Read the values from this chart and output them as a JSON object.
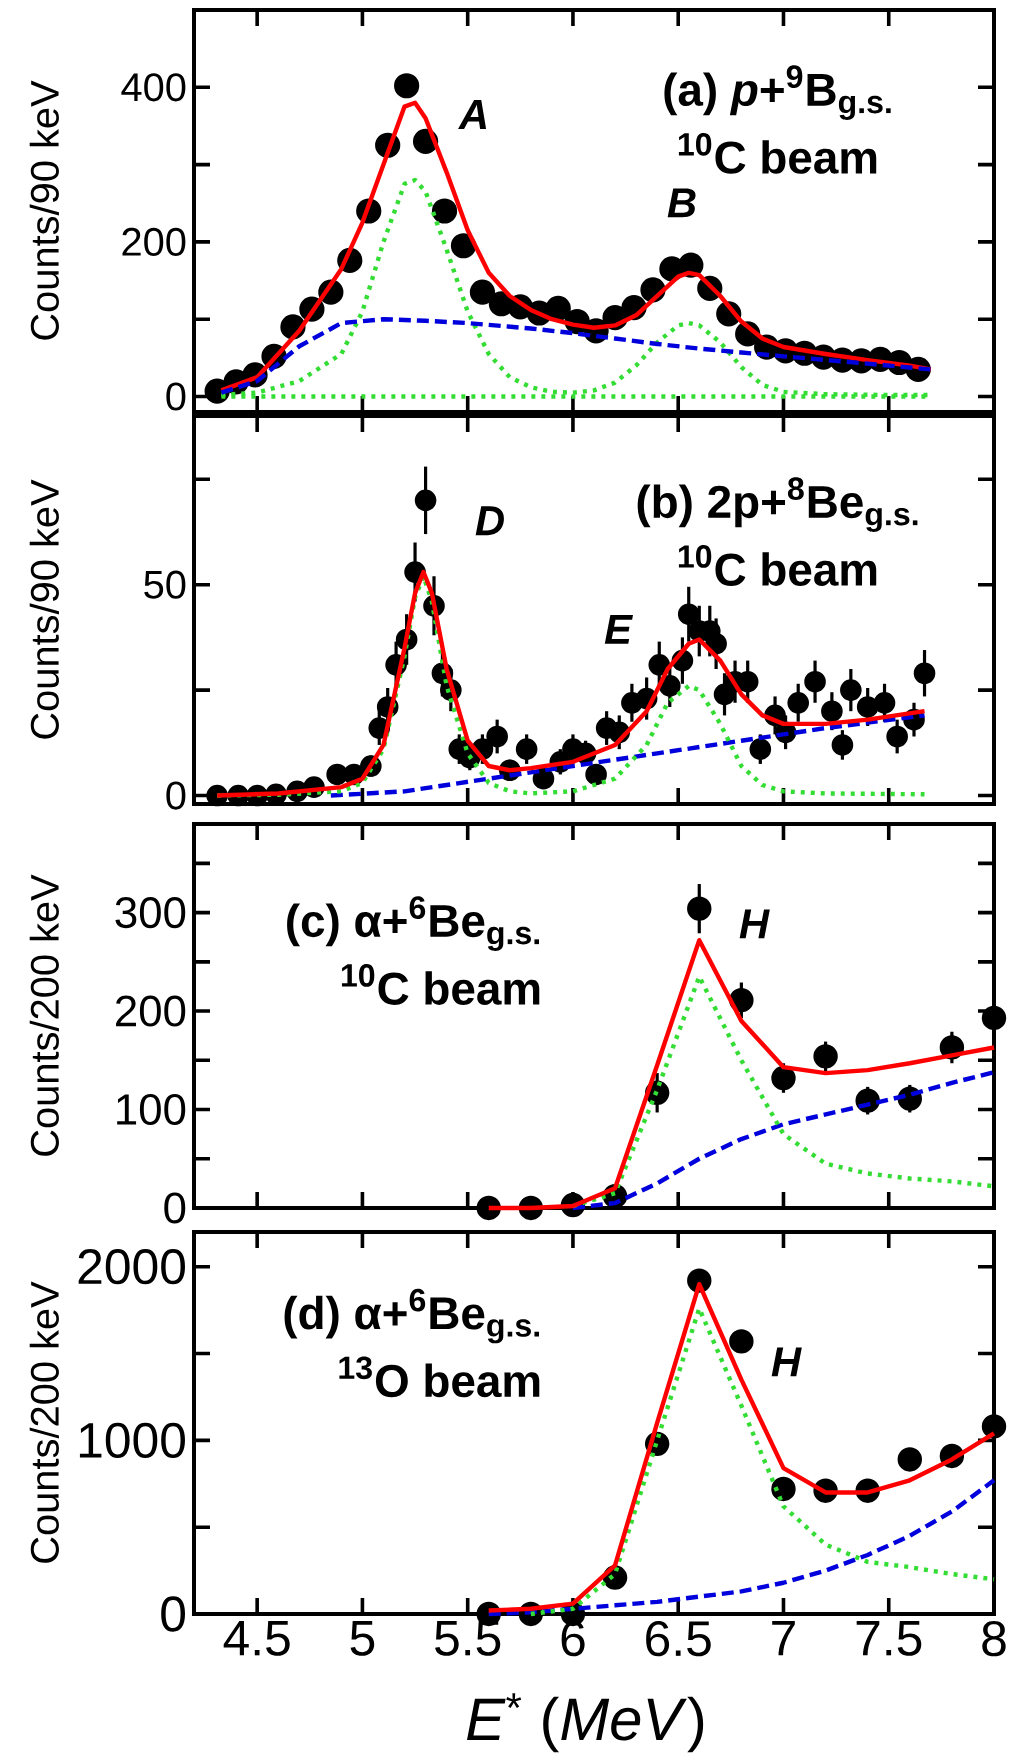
{
  "chart_data": [
    {
      "type": "scatter",
      "ylabel": "Counts/90 keV",
      "xlim": [
        4.2,
        8
      ],
      "xticks": [
        4.5,
        5,
        5.5,
        6,
        6.5,
        7,
        7.5,
        8
      ],
      "ylim": [
        -20,
        500
      ],
      "yticks": [
        0,
        {
          "value": 100,
          "label": null
        },
        200,
        {
          "value": 300,
          "label": null
        },
        400
      ],
      "tick_labels": "y",
      "annotations": [
        "(a) *p*+$^{9}$B$_{g.s.}$",
        "$^{10}$C beam",
        "A",
        "B"
      ],
      "series": [
        {
          "color": "#000000",
          "marker": "circle",
          "x": [
            4.31,
            4.4,
            4.49,
            4.58,
            4.67,
            4.76,
            4.85,
            4.94,
            5.03,
            5.12,
            5.21,
            5.3,
            5.39,
            5.48,
            5.57,
            5.66,
            5.75,
            5.84,
            5.93,
            6.02,
            6.11,
            6.2,
            6.29,
            6.38,
            6.47,
            6.56,
            6.65,
            6.74,
            6.83,
            6.92,
            7.01,
            7.1,
            7.19,
            7.28,
            7.37,
            7.46,
            7.55,
            7.64
          ],
          "values": [
            7,
            19,
            28,
            52,
            90,
            113,
            135,
            176,
            240,
            325,
            402,
            330,
            240,
            195,
            135,
            120,
            116,
            108,
            114,
            97,
            85,
            102,
            115,
            138,
            165,
            170,
            140,
            107,
            81,
            64,
            59,
            56,
            51,
            47,
            46,
            48,
            44,
            35
          ]
        },
        {
          "type": "line",
          "color": "#33dd33",
          "line_style": "dotted",
          "marker": "none",
          "x": [
            4.33,
            7.7
          ],
          "values": [
            0,
            0
          ]
        },
        {
          "type": "line",
          "color": "#33dd33",
          "line_style": "dotted",
          "marker": "none",
          "x": [
            4.33,
            4.5,
            4.7,
            4.9,
            5.0,
            5.1,
            5.2,
            5.25,
            5.3,
            5.4,
            5.5,
            5.6,
            5.7,
            5.8,
            5.9,
            6.0,
            6.1,
            6.2,
            6.3,
            6.4,
            6.5,
            6.55,
            6.6,
            6.7,
            6.8,
            6.9,
            7.0,
            7.2,
            7.5,
            7.7
          ],
          "values": [
            2,
            5,
            20,
            55,
            110,
            200,
            275,
            280,
            265,
            190,
            110,
            55,
            25,
            12,
            6,
            5,
            8,
            18,
            40,
            70,
            92,
            95,
            92,
            70,
            38,
            15,
            6,
            3,
            2,
            2
          ]
        },
        {
          "type": "line",
          "color": "#ff0000",
          "line_style": "solid",
          "marker": "none",
          "x": [
            4.33,
            4.5,
            4.7,
            4.9,
            5.0,
            5.1,
            5.2,
            5.25,
            5.3,
            5.4,
            5.5,
            5.6,
            5.7,
            5.8,
            5.9,
            6.0,
            6.1,
            6.2,
            6.3,
            6.4,
            6.5,
            6.55,
            6.6,
            6.7,
            6.8,
            6.9,
            7.0,
            7.2,
            7.4,
            7.6,
            7.7
          ],
          "values": [
            8,
            25,
            85,
            165,
            225,
            300,
            375,
            380,
            360,
            290,
            215,
            160,
            130,
            112,
            100,
            93,
            89,
            92,
            105,
            130,
            155,
            160,
            157,
            130,
            97,
            75,
            64,
            55,
            47,
            40,
            35
          ]
        },
        {
          "type": "line",
          "color": "#0000dd",
          "line_style": "dashed",
          "marker": "none",
          "x": [
            4.33,
            4.5,
            4.7,
            4.9,
            5.1,
            5.3,
            5.5,
            5.8,
            6.0,
            6.2,
            6.4,
            6.6,
            6.8,
            7.0,
            7.3,
            7.7
          ],
          "values": [
            5,
            20,
            65,
            95,
            100,
            98,
            95,
            88,
            82,
            75,
            68,
            62,
            57,
            52,
            45,
            35
          ]
        }
      ]
    },
    {
      "type": "scatter",
      "ylabel": "Counts/90 keV",
      "xlim": [
        4.2,
        8
      ],
      "xticks": [
        4.5,
        5,
        5.5,
        6,
        6.5,
        7,
        7.5,
        8
      ],
      "ylim": [
        -2,
        90
      ],
      "yticks": [
        0,
        {
          "value": 25,
          "label": null
        },
        50,
        {
          "value": 75,
          "label": null
        }
      ],
      "tick_labels": "y",
      "annotations": [
        "(b) 2p+$^{8}$Be$_{g.s.}$",
        "$^{10}$C beam",
        "D",
        "E"
      ],
      "series": [
        {
          "color": "#000000",
          "marker": "circle",
          "x": [
            4.31,
            4.41,
            4.5,
            4.59,
            4.69,
            4.77,
            4.88,
            4.96,
            5.04,
            5.08,
            5.12,
            5.16,
            5.21,
            5.25,
            5.3,
            5.34,
            5.38,
            5.42,
            5.46,
            5.51,
            5.57,
            5.64,
            5.7,
            5.78,
            5.86,
            5.94,
            6.0,
            6.06,
            6.11,
            6.16,
            6.22,
            6.28,
            6.35,
            6.41,
            6.46,
            6.52,
            6.55,
            6.6,
            6.65,
            6.68,
            6.72,
            6.77,
            6.83,
            6.89,
            6.96,
            7.01,
            7.07,
            7.15,
            7.23,
            7.28,
            7.32,
            7.4,
            7.48,
            7.54,
            7.62,
            7.67
          ],
          "values": [
            0,
            0,
            0,
            0.3,
            1,
            2,
            5,
            5,
            7,
            16,
            21,
            31,
            37,
            53,
            70,
            45,
            29,
            25,
            11,
            9,
            11,
            14,
            6,
            11,
            4,
            8,
            11,
            10,
            5,
            16,
            15,
            22,
            23,
            31,
            26,
            32,
            43,
            39,
            39,
            36,
            24,
            27,
            27,
            11,
            19,
            15,
            22,
            27,
            20,
            12,
            25,
            21,
            22,
            14,
            18,
            29
          ],
          "errors": [
            null,
            null,
            null,
            null,
            null,
            null,
            2,
            2,
            2.5,
            4,
            4.5,
            5.5,
            6,
            7,
            8,
            7,
            5.5,
            5,
            3.5,
            3,
            3.5,
            4,
            2.5,
            3.5,
            2,
            3,
            3.5,
            3,
            2,
            4,
            4,
            4.5,
            5,
            5.5,
            5,
            5.5,
            6.5,
            6,
            6,
            6,
            5,
            5,
            5,
            3.5,
            4.5,
            4,
            4.5,
            5,
            4.5,
            3.5,
            5,
            4.5,
            4.5,
            4,
            4,
            5.5
          ]
        },
        {
          "type": "line",
          "color": "#0000dd",
          "line_style": "dashed",
          "marker": "none",
          "x": [
            4.85,
            5.2,
            5.6,
            6.0,
            6.4,
            6.8,
            7.2,
            7.67
          ],
          "values": [
            0,
            1,
            4,
            7,
            10,
            13,
            16,
            19
          ]
        },
        {
          "type": "line",
          "color": "#33dd33",
          "line_style": "dotted",
          "marker": "none",
          "x": [
            4.31,
            4.6,
            4.9,
            5.0,
            5.1,
            5.2,
            5.25,
            5.29,
            5.33,
            5.4,
            5.5,
            5.6,
            5.7,
            5.8,
            6.0,
            6.2,
            6.35,
            6.45,
            6.55,
            6.6,
            6.7,
            6.8,
            6.9,
            7.0,
            7.2,
            7.67
          ],
          "values": [
            0,
            0.2,
            1,
            3,
            11,
            33,
            47,
            52,
            46,
            26,
            10,
            3,
            1,
            0.5,
            1,
            4,
            12,
            22,
            26,
            25,
            17,
            7,
            2.5,
            1,
            0.5,
            0.3
          ]
        },
        {
          "type": "line",
          "color": "#ff0000",
          "line_style": "solid",
          "marker": "none",
          "x": [
            4.31,
            4.6,
            4.9,
            5.0,
            5.1,
            5.2,
            5.25,
            5.29,
            5.33,
            5.4,
            5.5,
            5.6,
            5.7,
            5.8,
            6.0,
            6.2,
            6.35,
            6.45,
            6.55,
            6.6,
            6.7,
            6.8,
            6.9,
            7.0,
            7.2,
            7.4,
            7.67
          ],
          "values": [
            0,
            0.5,
            2,
            4,
            12,
            35,
            48,
            53,
            48,
            30,
            13,
            7,
            6,
            6.5,
            8,
            12,
            20,
            30,
            36,
            37,
            32,
            24,
            19,
            17,
            17,
            18,
            20
          ]
        }
      ]
    },
    {
      "type": "scatter",
      "ylabel": "Counts/200 keV",
      "xlim": [
        4.2,
        8
      ],
      "xticks": [
        4.5,
        5,
        5.5,
        6,
        6.5,
        7,
        7.5,
        8
      ],
      "ylim": [
        0,
        390
      ],
      "yticks": [
        0,
        {
          "value": 50,
          "label": null
        },
        100,
        {
          "value": 150,
          "label": null
        },
        200,
        {
          "value": 250,
          "label": null
        },
        300,
        {
          "value": 350,
          "label": null
        }
      ],
      "tick_labels": "y",
      "annotations": [
        "(c) α+$^{6}$Be$_{g.s.}$",
        "$^{10}$C beam",
        "H"
      ],
      "series": [
        {
          "color": "#000000",
          "marker": "circle",
          "x": [
            5.6,
            5.8,
            6.0,
            6.2,
            6.4,
            6.6,
            6.8,
            7.0,
            7.2,
            7.4,
            7.6,
            7.8,
            8.0
          ],
          "values": [
            0,
            0,
            3,
            12,
            117,
            304,
            211,
            132,
            154,
            109,
            111,
            163,
            193
          ],
          "errors": [
            null,
            null,
            null,
            5,
            20,
            25,
            18,
            15,
            15,
            14,
            14,
            16,
            17
          ]
        },
        {
          "type": "line",
          "color": "#0000dd",
          "line_style": "dashed",
          "marker": "none",
          "x": [
            6.0,
            6.2,
            6.4,
            6.6,
            6.8,
            7.0,
            7.2,
            7.4,
            7.6,
            7.8,
            8.0
          ],
          "values": [
            0,
            5,
            25,
            50,
            70,
            85,
            95,
            105,
            115,
            127,
            138
          ]
        },
        {
          "type": "line",
          "color": "#33dd33",
          "line_style": "dotted",
          "marker": "none",
          "x": [
            6.0,
            6.2,
            6.4,
            6.6,
            6.8,
            7.0,
            7.2,
            7.4,
            7.6,
            7.8,
            8.0
          ],
          "values": [
            2,
            15,
            120,
            235,
            150,
            75,
            45,
            35,
            30,
            27,
            22
          ]
        },
        {
          "type": "line",
          "color": "#ff0000",
          "line_style": "solid",
          "marker": "none",
          "x": [
            5.6,
            5.8,
            6.0,
            6.2,
            6.4,
            6.6,
            6.8,
            7.0,
            7.2,
            7.4,
            7.6,
            7.8,
            8.0
          ],
          "values": [
            0,
            0,
            2,
            20,
            145,
            272,
            190,
            143,
            137,
            140,
            147,
            155,
            163
          ]
        }
      ]
    },
    {
      "type": "scatter",
      "ylabel": "Counts/200 keV",
      "xlabel": "*E*$^{*}$ (*MeV*)",
      "xlim": [
        4.2,
        8
      ],
      "xticks": [
        4.5,
        5,
        5.5,
        6,
        6.5,
        7,
        7.5,
        8
      ],
      "ylim": [
        0,
        2200
      ],
      "yticks": [
        0,
        {
          "value": 500,
          "label": null
        },
        1000,
        {
          "value": 1500,
          "label": null
        },
        2000
      ],
      "annotations": [
        "(d) α+$^{6}$Be$_{g.s.}$",
        "$^{13}$O beam",
        "H"
      ],
      "series": [
        {
          "color": "#000000",
          "marker": "circle",
          "x": [
            5.6,
            5.8,
            6.0,
            6.2,
            6.4,
            6.6,
            6.8,
            7.0,
            7.2,
            7.4,
            7.6,
            7.8,
            8.0
          ],
          "values": [
            0,
            0,
            0,
            210,
            980,
            1920,
            1570,
            720,
            710,
            710,
            890,
            910,
            1080
          ]
        },
        {
          "type": "line",
          "color": "#0000dd",
          "line_style": "dashed",
          "marker": "none",
          "x": [
            5.6,
            5.8,
            6.0,
            6.2,
            6.4,
            6.6,
            6.8,
            7.0,
            7.2,
            7.4,
            7.6,
            7.8,
            8.0
          ],
          "values": [
            0,
            10,
            30,
            50,
            70,
            100,
            130,
            180,
            250,
            340,
            450,
            590,
            770
          ]
        },
        {
          "type": "line",
          "color": "#33dd33",
          "line_style": "dotted",
          "marker": "none",
          "x": [
            5.8,
            6.0,
            6.2,
            6.4,
            6.6,
            6.8,
            7.0,
            7.2,
            7.4,
            7.6,
            7.8,
            8.0
          ],
          "values": [
            0,
            30,
            230,
            1000,
            1760,
            1200,
            620,
            400,
            300,
            270,
            230,
            200
          ]
        },
        {
          "type": "line",
          "color": "#ff0000",
          "line_style": "solid",
          "marker": "none",
          "x": [
            5.6,
            5.8,
            6.0,
            6.2,
            6.4,
            6.6,
            6.8,
            7.0,
            7.2,
            7.4,
            7.6,
            7.8,
            8.0
          ],
          "values": [
            20,
            30,
            60,
            280,
            1100,
            1900,
            1350,
            840,
            700,
            700,
            770,
            890,
            1040
          ]
        }
      ]
    }
  ]
}
